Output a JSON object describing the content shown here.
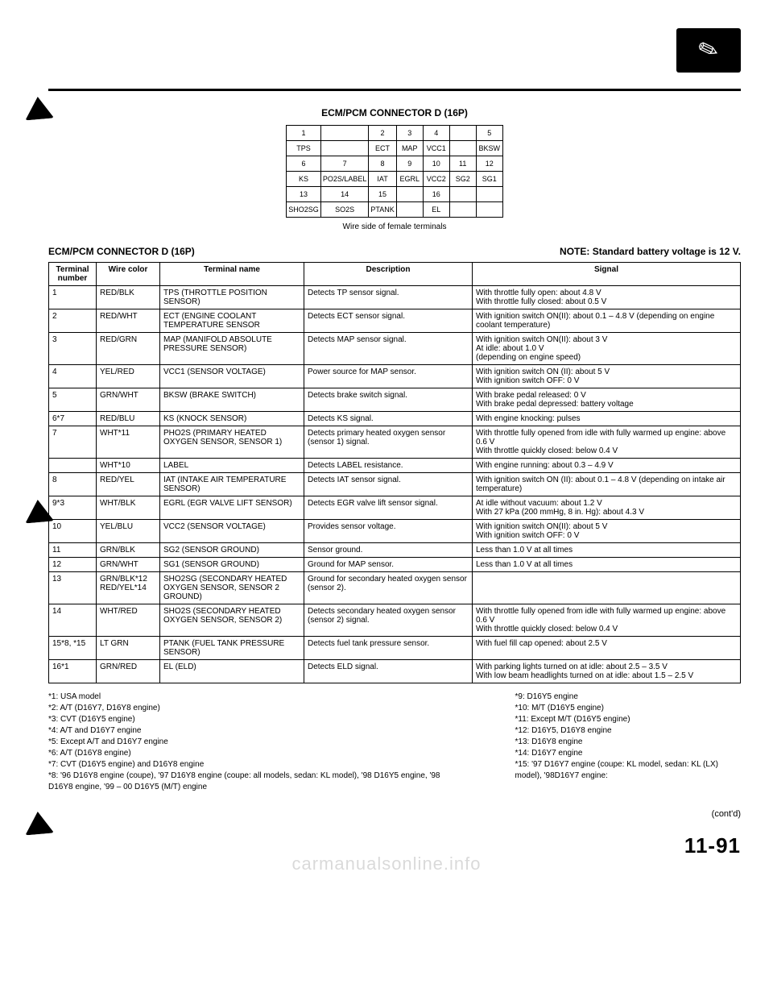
{
  "logo_icon": "✎",
  "connector_title": "ECM/PCM CONNECTOR D (16P)",
  "conn": {
    "r1": [
      "1",
      "",
      "2",
      "3",
      "4",
      "",
      "5"
    ],
    "r2": [
      "TPS",
      "",
      "ECT",
      "MAP",
      "VCC1",
      "",
      "BKSW"
    ],
    "r3": [
      "6",
      "7",
      "8",
      "9",
      "10",
      "11",
      "12"
    ],
    "r4": [
      "KS",
      "PO2S/LABEL",
      "IAT",
      "EGRL",
      "VCC2",
      "SG2",
      "SG1"
    ],
    "r5": [
      "13",
      "14",
      "15",
      "",
      "16",
      "",
      ""
    ],
    "r6": [
      "SHO2SG",
      "SO2S",
      "PTANK",
      "",
      "EL",
      "",
      ""
    ]
  },
  "conn_caption": "Wire side of female terminals",
  "section_left": "ECM/PCM CONNECTOR D (16P)",
  "section_right": "NOTE: Standard battery voltage is 12 V.",
  "headers": {
    "term": "Terminal number",
    "wire": "Wire color",
    "name": "Terminal name",
    "desc": "Description",
    "signal": "Signal"
  },
  "rows": [
    {
      "t": "1",
      "w": "RED/BLK",
      "n": "TPS (THROTTLE POSITION SENSOR)",
      "d": "Detects TP sensor signal.",
      "s": "With throttle fully open: about 4.8 V\nWith throttle fully closed: about 0.5 V"
    },
    {
      "t": "2",
      "w": "RED/WHT",
      "n": "ECT (ENGINE COOLANT TEMPERATURE SENSOR",
      "d": "Detects ECT sensor signal.",
      "s": "With ignition switch ON(II): about 0.1 – 4.8 V (depending on engine coolant temperature)"
    },
    {
      "t": "3",
      "w": "RED/GRN",
      "n": "MAP (MANIFOLD ABSOLUTE PRESSURE SENSOR)",
      "d": "Detects MAP sensor signal.",
      "s": "With ignition switch ON(II): about 3 V\nAt idle: about 1.0 V\n(depending on engine speed)"
    },
    {
      "t": "4",
      "w": "YEL/RED",
      "n": "VCC1 (SENSOR VOLTAGE)",
      "d": "Power source for MAP sensor.",
      "s": "With ignition switch ON (II): about 5 V\nWith ignition switch OFF: 0 V"
    },
    {
      "t": "5",
      "w": "GRN/WHT",
      "n": "BKSW (BRAKE SWITCH)",
      "d": "Detects brake switch signal.",
      "s": "With brake pedal released: 0 V\nWith brake pedal depressed: battery voltage"
    },
    {
      "t": "6*7",
      "w": "RED/BLU",
      "n": "KS (KNOCK SENSOR)",
      "d": "Detects KS signal.",
      "s": "With engine knocking: pulses"
    },
    {
      "t": "7",
      "w": "WHT*11",
      "n": "PHO2S (PRIMARY HEATED OXYGEN SENSOR, SENSOR 1)",
      "d": "Detects primary heated oxygen sensor (sensor 1) signal.",
      "s": "With throttle fully opened from idle with fully warmed up engine: above 0.6 V\nWith throttle quickly closed: below 0.4 V"
    },
    {
      "t": "",
      "w": "WHT*10",
      "n": "LABEL",
      "d": "Detects LABEL resistance.",
      "s": "With engine running: about 0.3 – 4.9 V"
    },
    {
      "t": "8",
      "w": "RED/YEL",
      "n": "IAT (INTAKE AIR TEMPERATURE SENSOR)",
      "d": "Detects IAT sensor signal.",
      "s": "With ignition switch ON (II): about 0.1 – 4.8 V (depending on intake air temperature)"
    },
    {
      "t": "9*3",
      "w": "WHT/BLK",
      "n": "EGRL (EGR VALVE LIFT SENSOR)",
      "d": "Detects EGR valve lift sensor signal.",
      "s": "At idle without vacuum: about 1.2 V\nWith 27 kPa (200 mmHg, 8 in. Hg): about 4.3 V"
    },
    {
      "t": "10",
      "w": "YEL/BLU",
      "n": "VCC2 (SENSOR VOLTAGE)",
      "d": "Provides sensor voltage.",
      "s": "With ignition switch ON(II): about 5 V\nWith ignition switch OFF: 0 V"
    },
    {
      "t": "11",
      "w": "GRN/BLK",
      "n": "SG2 (SENSOR GROUND)",
      "d": "Sensor ground.",
      "s": "Less than 1.0 V at all times"
    },
    {
      "t": "12",
      "w": "GRN/WHT",
      "n": "SG1 (SENSOR GROUND)",
      "d": "Ground for MAP sensor.",
      "s": "Less than 1.0 V at all times"
    },
    {
      "t": "13",
      "w": "GRN/BLK*12 RED/YEL*14",
      "n": "SHO2SG (SECONDARY HEATED OXYGEN SENSOR, SENSOR 2 GROUND)",
      "d": "Ground for secondary heated oxygen sensor (sensor 2).",
      "s": ""
    },
    {
      "t": "14",
      "w": "WHT/RED",
      "n": "SHO2S (SECONDARY HEATED OXYGEN SENSOR, SENSOR 2)",
      "d": "Detects secondary heated oxygen sensor (sensor 2) signal.",
      "s": "With throttle fully opened from idle with fully warmed up engine: above 0.6 V\nWith throttle quickly closed: below 0.4 V"
    },
    {
      "t": "15*8, *15",
      "w": "LT GRN",
      "n": "PTANK (FUEL TANK PRESSURE SENSOR)",
      "d": "Detects fuel tank pressure sensor.",
      "s": "With fuel fill cap opened: about 2.5 V"
    },
    {
      "t": "16*1",
      "w": "GRN/RED",
      "n": "EL (ELD)",
      "d": "Detects ELD signal.",
      "s": "With parking lights turned on at idle: about 2.5 – 3.5 V\nWith low beam headlights turned on at idle: about 1.5 – 2.5 V"
    }
  ],
  "footnotes_left": [
    "*1: USA model",
    "*2: A/T (D16Y7, D16Y8 engine)",
    "*3: CVT (D16Y5 engine)",
    "*4: A/T and D16Y7 engine",
    "*5: Except A/T and D16Y7 engine",
    "*6: A/T (D16Y8 engine)",
    "*7: CVT (D16Y5 engine) and D16Y8 engine",
    "*8: '96 D16Y8 engine (coupe), '97 D16Y8 engine (coupe: all models, sedan: KL model), '98 D16Y5 engine, '98 D16Y8 engine, '99 – 00 D16Y5 (M/T) engine"
  ],
  "footnotes_right": [
    "*9: D16Y5 engine",
    "*10: M/T (D16Y5 engine)",
    "*11: Except M/T (D16Y5 engine)",
    "*12: D16Y5, D16Y8 engine",
    "*13: D16Y8 engine",
    "*14: D16Y7 engine",
    "*15: '97 D16Y7 engine (coupe: KL model, sedan: KL (LX) model), '98D16Y7 engine:"
  ],
  "contd": "(cont'd)",
  "pagenum": "11-91",
  "watermark": "carmanualsonline.info"
}
